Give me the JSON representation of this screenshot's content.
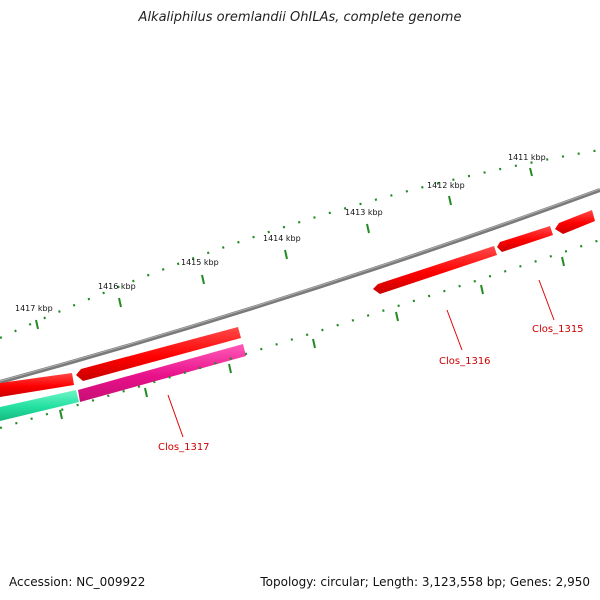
{
  "title": "Alkaliphilus oremlandii OhILAs, complete genome",
  "footer": {
    "accession": "Accession: NC_009922",
    "summary": "Topology: circular; Length: 3,123,558 bp; Genes: 2,950"
  },
  "scale_labels": [
    "1411 kbp",
    "1412 kbp",
    "1413 kbp",
    "1414 kbp",
    "1415 kbp",
    "1416 kbp",
    "1417 kbp"
  ],
  "gene_labels": [
    "Clos_1315",
    "Clos_1316",
    "Clos_1317"
  ],
  "colors": {
    "backbone": "#808080",
    "cds_red": "#ff0000",
    "cds_magenta": "#e8118a",
    "cds_green": "#22e0a0",
    "tick": "#228b22",
    "label": "#cc0000"
  }
}
